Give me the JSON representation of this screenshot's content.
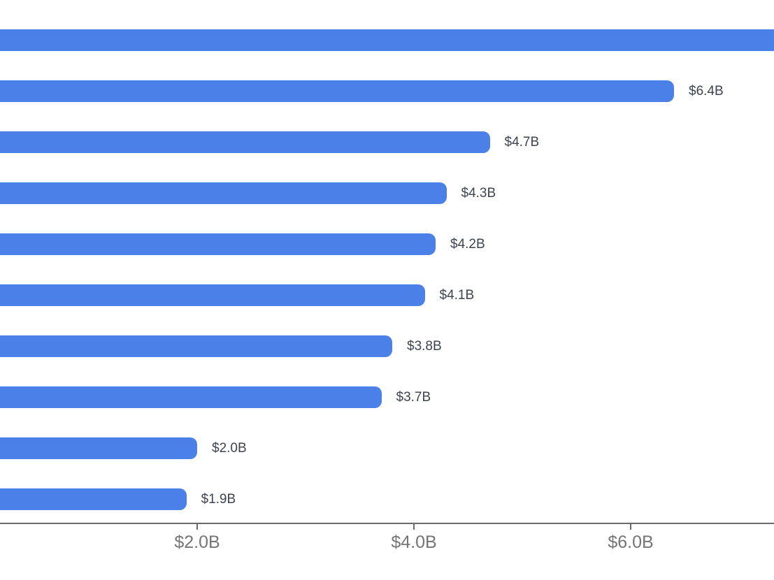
{
  "chart_data": {
    "type": "bar",
    "orientation": "horizontal",
    "title": "",
    "xlabel": "",
    "ylabel": "",
    "value_unit": "USD billions",
    "legend": null,
    "grid": false,
    "x_axis_range_visible": [
      0.2,
      7.3
    ],
    "x_ticks": [
      {
        "value": 2.0,
        "label": "$2.0B"
      },
      {
        "value": 4.0,
        "label": "$4.0B"
      },
      {
        "value": 6.0,
        "label": "$6.0B"
      }
    ],
    "bars": [
      {
        "value": null,
        "label": "",
        "clipped": true
      },
      {
        "value": 6.4,
        "label": "$6.4B",
        "clipped": false
      },
      {
        "value": 4.7,
        "label": "$4.7B",
        "clipped": false
      },
      {
        "value": 4.3,
        "label": "$4.3B",
        "clipped": false
      },
      {
        "value": 4.2,
        "label": "$4.2B",
        "clipped": false
      },
      {
        "value": 4.1,
        "label": "$4.1B",
        "clipped": false
      },
      {
        "value": 3.8,
        "label": "$3.8B",
        "clipped": false
      },
      {
        "value": 3.7,
        "label": "$3.7B",
        "clipped": false
      },
      {
        "value": 2.0,
        "label": "$2.0B",
        "clipped": false
      },
      {
        "value": 1.9,
        "label": "$1.9B",
        "clipped": false
      }
    ],
    "colors": {
      "bar": "#4b80e9",
      "value_label": "#3d4450",
      "tick_label": "#757575",
      "axis_line": "#6a6a6a",
      "background": "#ffffff"
    }
  }
}
